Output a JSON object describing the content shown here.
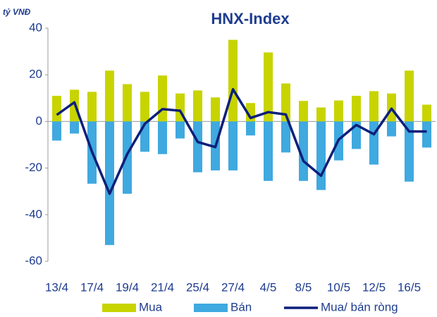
{
  "chart_data": {
    "type": "bar_line",
    "title": "HNX-Index",
    "y_label": "tỷ VNĐ",
    "categories": [
      "13/4",
      null,
      "17/4",
      null,
      "19/4",
      null,
      "21/4",
      null,
      "25/4",
      null,
      "27/4",
      null,
      "4/5",
      null,
      "8/5",
      null,
      "10/5",
      null,
      "12/5",
      null,
      "16/5",
      null
    ],
    "series": [
      {
        "name": "Mua",
        "type": "bar",
        "color": "#c8d400",
        "values": [
          11,
          13.6,
          12.7,
          21.8,
          16,
          12.7,
          19.7,
          12,
          13.3,
          10.3,
          35,
          7.9,
          29.6,
          16.3,
          8.8,
          6,
          9,
          11,
          13,
          12,
          21.8,
          7.2
        ]
      },
      {
        "name": "Bán",
        "type": "bar",
        "color": "#3fa9e0",
        "values": [
          -8.2,
          -5.2,
          -26.7,
          -53,
          -31,
          -13,
          -14,
          -7.3,
          -21.8,
          -21,
          -21,
          -6,
          -25.5,
          -13.3,
          -25.5,
          -29.4,
          -16.7,
          -11.8,
          -18.5,
          -6.4,
          -25.8,
          -11.2
        ]
      },
      {
        "name": "Mua/ bán ròng",
        "type": "line",
        "color": "#0d1f7a",
        "values": [
          2.8,
          8.2,
          -13,
          -31,
          -14,
          -1,
          5.3,
          4.6,
          -8.8,
          -11,
          13.8,
          1.5,
          4,
          3,
          -17,
          -23.3,
          -7.8,
          -1.5,
          -5.5,
          5.5,
          -4.3,
          -4.3
        ]
      }
    ],
    "ylim": [
      -60,
      40
    ],
    "yticks": [
      -60,
      -40,
      -20,
      0,
      20,
      40
    ]
  }
}
